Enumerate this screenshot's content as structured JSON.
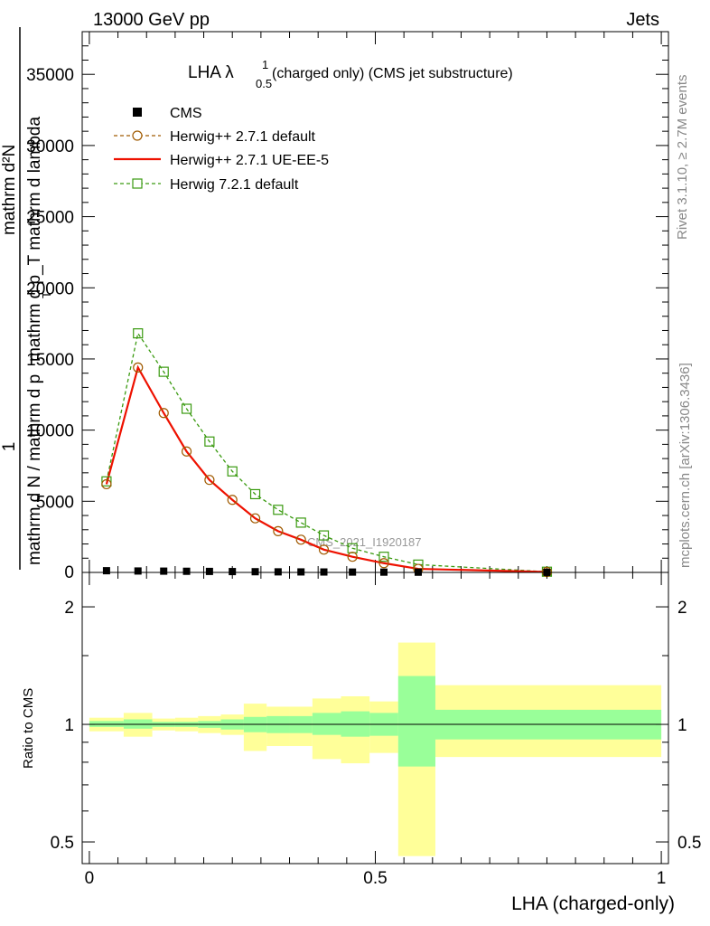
{
  "header": {
    "left": "13000 GeV pp",
    "right": "Jets"
  },
  "side_labels": {
    "rivet": "Rivet 3.1.10, ≥ 2.7M events",
    "mcplots": "mcplots.cern.ch [arXiv:1306.3436]"
  },
  "watermark": "CMS_2021_I1920187",
  "colors": {
    "cms": "#000000",
    "herwig_default": "#a05a00",
    "herwig_ueee5": "#ee1100",
    "herwig721": "#3a9a10",
    "band_inner": "#99ff99",
    "band_outer": "#ffff99"
  },
  "chart_data": [
    {
      "type": "line",
      "title": {
        "main": "LHA λ",
        "sup": "1",
        "sub": "0.5",
        "rest": "(charged only) (CMS jet substructure)"
      },
      "ylabel": {
        "numerator_top": "mathrm d²N",
        "numerator_bottom": "mathrm d p_T mathrm d lambda",
        "one": "1",
        "denominator_top": "mathrm d N / mathrm d p",
        "denominator_bottom": "T"
      },
      "xlim": [
        -0.0125,
        1.0125
      ],
      "ylim": [
        0,
        38000
      ],
      "yticks": [
        5000,
        10000,
        15000,
        20000,
        25000,
        30000,
        35000
      ],
      "ytick_labels": [
        "5000",
        "10000",
        "15000",
        "20000",
        "25000",
        "30000",
        "35000"
      ],
      "yzero_label": "0",
      "legend_position": "top-left",
      "x": [
        0.03,
        0.085,
        0.13,
        0.17,
        0.21,
        0.25,
        0.29,
        0.33,
        0.37,
        0.41,
        0.46,
        0.515,
        0.575,
        0.8
      ],
      "series": [
        {
          "name": "CMS",
          "marker": "square",
          "values": [
            120,
            100,
            90,
            80,
            70,
            60,
            50,
            40,
            35,
            30,
            25,
            20,
            15,
            5
          ]
        },
        {
          "name": "Herwig++ 2.7.1 default",
          "marker": "circle",
          "dashed": true,
          "values": [
            6200,
            14400,
            11200,
            8500,
            6500,
            5100,
            3800,
            2900,
            2300,
            1600,
            1100,
            650,
            250,
            30
          ]
        },
        {
          "name": "Herwig++ 2.7.1 UE-EE-5",
          "marker": "none",
          "dashed": false,
          "values": [
            6200,
            14400,
            11200,
            8500,
            6500,
            5100,
            3800,
            2900,
            2300,
            1600,
            1100,
            650,
            250,
            30
          ]
        },
        {
          "name": "Herwig 7.2.1 default",
          "marker": "square-open",
          "dashed": true,
          "values": [
            6400,
            16800,
            14100,
            11500,
            9200,
            7100,
            5500,
            4400,
            3500,
            2600,
            1700,
            1100,
            550,
            50
          ]
        }
      ]
    },
    {
      "type": "area",
      "ylabel": "Ratio to CMS",
      "xlabel": "LHA (charged-only)",
      "xlim": [
        -0.0125,
        1.0125
      ],
      "ylim": [
        0.44,
        2.45
      ],
      "log_y": true,
      "yticks": [
        0.5,
        1,
        2
      ],
      "ytick_labels": [
        "0.5",
        "1",
        "2"
      ],
      "xticks": [
        0,
        0.5,
        1
      ],
      "xtick_labels": [
        "0",
        "0.5",
        "1"
      ],
      "bins": [
        {
          "lo": 0.0,
          "hi": 0.06,
          "inner": [
            0.985,
            1.02
          ],
          "outer": [
            0.96,
            1.04
          ]
        },
        {
          "lo": 0.06,
          "hi": 0.11,
          "inner": [
            0.975,
            1.03
          ],
          "outer": [
            0.93,
            1.07
          ]
        },
        {
          "lo": 0.11,
          "hi": 0.15,
          "inner": [
            0.985,
            1.015
          ],
          "outer": [
            0.965,
            1.035
          ]
        },
        {
          "lo": 0.15,
          "hi": 0.19,
          "inner": [
            0.985,
            1.015
          ],
          "outer": [
            0.96,
            1.04
          ]
        },
        {
          "lo": 0.19,
          "hi": 0.23,
          "inner": [
            0.98,
            1.02
          ],
          "outer": [
            0.95,
            1.05
          ]
        },
        {
          "lo": 0.23,
          "hi": 0.27,
          "inner": [
            0.97,
            1.03
          ],
          "outer": [
            0.94,
            1.06
          ]
        },
        {
          "lo": 0.27,
          "hi": 0.31,
          "inner": [
            0.955,
            1.045
          ],
          "outer": [
            0.855,
            1.13
          ]
        },
        {
          "lo": 0.31,
          "hi": 0.35,
          "inner": [
            0.95,
            1.05
          ],
          "outer": [
            0.88,
            1.11
          ]
        },
        {
          "lo": 0.35,
          "hi": 0.39,
          "inner": [
            0.95,
            1.05
          ],
          "outer": [
            0.88,
            1.11
          ]
        },
        {
          "lo": 0.39,
          "hi": 0.44,
          "inner": [
            0.94,
            1.07
          ],
          "outer": [
            0.815,
            1.165
          ]
        },
        {
          "lo": 0.44,
          "hi": 0.49,
          "inner": [
            0.93,
            1.08
          ],
          "outer": [
            0.795,
            1.18
          ]
        },
        {
          "lo": 0.49,
          "hi": 0.54,
          "inner": [
            0.935,
            1.07
          ],
          "outer": [
            0.845,
            1.145
          ]
        },
        {
          "lo": 0.54,
          "hi": 0.605,
          "inner": [
            0.78,
            1.33
          ],
          "outer": [
            0.46,
            1.62
          ]
        },
        {
          "lo": 0.605,
          "hi": 1.0,
          "inner": [
            0.915,
            1.09
          ],
          "outer": [
            0.825,
            1.26
          ]
        }
      ],
      "reference": 1
    }
  ]
}
